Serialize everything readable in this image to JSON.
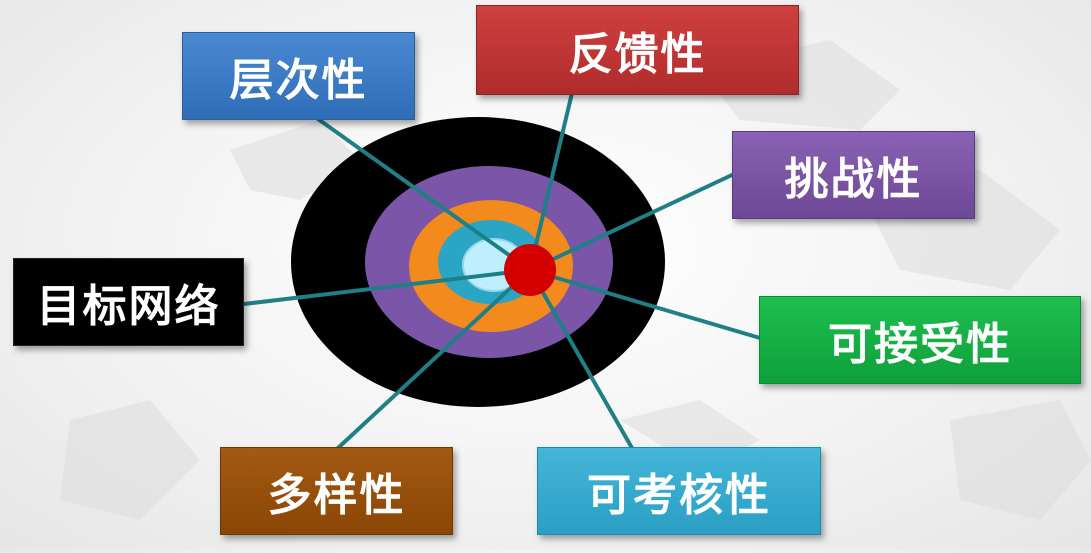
{
  "labels": {
    "hierarchy": "层次性",
    "feedback": "反馈性",
    "challenge": "挑战性",
    "goal_network": "目标网络",
    "acceptability": "可接受性",
    "diversity": "多样性",
    "assessability": "可考核性"
  },
  "colors": {
    "ring_outer": "#000000",
    "ring_purple": "#7b56a8",
    "ring_orange": "#f28a1e",
    "ring_teal": "#2aa6c4",
    "ring_core": "#bfefff",
    "center_dot": "#d40000",
    "connector": "#1f7f86"
  }
}
